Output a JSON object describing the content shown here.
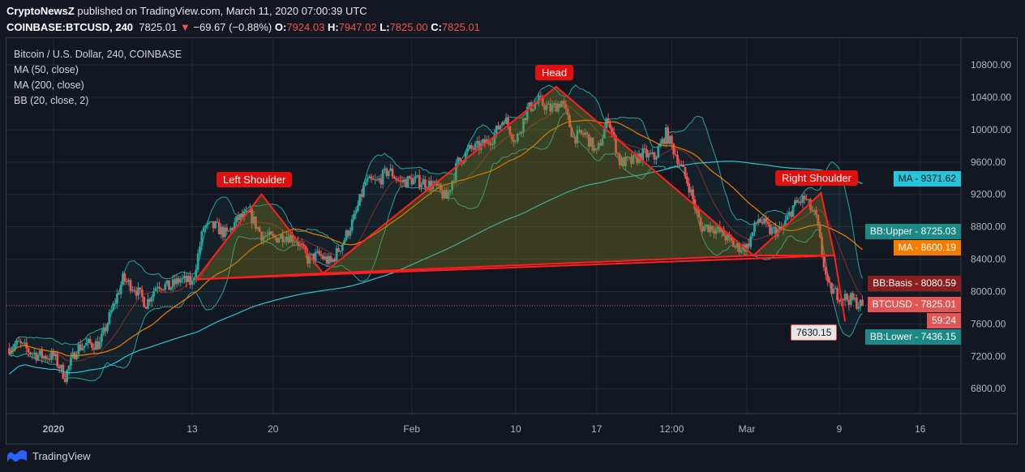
{
  "header": {
    "publisher": "CryptoNewsZ",
    "published_text": "published on TradingView.com, March 11, 2020 07:00:39 UTC",
    "symbol": "COINBASE:BTCUSD, 240",
    "last": "7825.01",
    "change": "−69.67 (−0.88%)",
    "open": "7924.03",
    "high": "7947.02",
    "low": "7825.00",
    "close": "7825.01",
    "o_label": "O:",
    "h_label": "H:",
    "l_label": "L:",
    "c_label": "C:"
  },
  "legend": {
    "title": "Bitcoin / U.S. Dollar, 240, COINBASE",
    "ma50": "MA (50, close)",
    "ma200": "MA (200, close)",
    "bb": "BB (20, close, 2)"
  },
  "price_labels": [
    {
      "name": "MA",
      "value": "9371.62",
      "color": "#26c6da",
      "text_color": "#131722"
    },
    {
      "name": "BB:Upper",
      "value": "8725.03",
      "color": "#1b8a86",
      "text_color": "#ffffff"
    },
    {
      "name": "MA",
      "value": "8600.19",
      "color": "#f57c00",
      "text_color": "#ffffff"
    },
    {
      "name": "BB:Basis",
      "value": "8080.59",
      "color": "#8b1e1e",
      "text_color": "#ffffff"
    },
    {
      "name": "BTCUSD",
      "value": "7825.01",
      "color": "#e35454",
      "text_color": "#ffffff"
    },
    {
      "name": "",
      "value": "59:24",
      "color": "#e35454",
      "text_color": "#ffffff"
    },
    {
      "name": "BB:Lower",
      "value": "7436.15",
      "color": "#1b8a86",
      "text_color": "#ffffff"
    }
  ],
  "annotations": {
    "head": "Head",
    "left_shoulder": "Left Shoulder",
    "right_shoulder": "Right Shoulder",
    "price_callout": "7630.15"
  },
  "footer": {
    "brand": "TradingView"
  },
  "colors": {
    "up": "#26a69a",
    "down": "#ef5350",
    "pattern": "#ff1f1f",
    "ma50": "#f57c00",
    "ma200": "#26c6da",
    "bb": "#26a69a",
    "basis": "#e04040"
  },
  "chart_data": {
    "type": "candlestick",
    "interval": "240",
    "ylim": [
      6500,
      11000
    ],
    "y_ticks": [
      6800,
      7200,
      7600,
      8000,
      8400,
      8800,
      9200,
      9600,
      10000,
      10400,
      10800
    ],
    "x_ticks": [
      {
        "label": "2020",
        "date": "2020-01-01"
      },
      {
        "label": "13",
        "date": "2020-01-13"
      },
      {
        "label": "20",
        "date": "2020-01-20"
      },
      {
        "label": "Feb",
        "date": "2020-02-01"
      },
      {
        "label": "10",
        "date": "2020-02-10"
      },
      {
        "label": "17",
        "date": "2020-02-17"
      },
      {
        "label": "12:00",
        "date": "2020-02-23T12:00"
      },
      {
        "label": "Mar",
        "date": "2020-03-01"
      },
      {
        "label": "9",
        "date": "2020-03-09"
      },
      {
        "label": "16",
        "date": "2020-03-16"
      }
    ],
    "grid": true,
    "approx_daily_close": [
      [
        "2019-12-28",
        7300
      ],
      [
        "2019-12-29",
        7350
      ],
      [
        "2019-12-30",
        7250
      ],
      [
        "2019-12-31",
        7200
      ],
      [
        "2020-01-01",
        7200
      ],
      [
        "2020-01-02",
        6950
      ],
      [
        "2020-01-03",
        7300
      ],
      [
        "2020-01-04",
        7350
      ],
      [
        "2020-01-05",
        7350
      ],
      [
        "2020-01-06",
        7750
      ],
      [
        "2020-01-07",
        8150
      ],
      [
        "2020-01-08",
        8050
      ],
      [
        "2020-01-09",
        7850
      ],
      [
        "2020-01-10",
        8100
      ],
      [
        "2020-01-11",
        8050
      ],
      [
        "2020-01-12",
        8150
      ],
      [
        "2020-01-13",
        8100
      ],
      [
        "2020-01-14",
        8800
      ],
      [
        "2020-01-15",
        8800
      ],
      [
        "2020-01-16",
        8700
      ],
      [
        "2020-01-17",
        8900
      ],
      [
        "2020-01-18",
        8950
      ],
      [
        "2020-01-19",
        8700
      ],
      [
        "2020-01-20",
        8650
      ],
      [
        "2020-01-21",
        8700
      ],
      [
        "2020-01-22",
        8650
      ],
      [
        "2020-01-23",
        8400
      ],
      [
        "2020-01-24",
        8450
      ],
      [
        "2020-01-25",
        8350
      ],
      [
        "2020-01-26",
        8600
      ],
      [
        "2020-01-27",
        8900
      ],
      [
        "2020-01-28",
        9350
      ],
      [
        "2020-01-29",
        9350
      ],
      [
        "2020-01-30",
        9500
      ],
      [
        "2020-01-31",
        9350
      ],
      [
        "2020-02-01",
        9380
      ],
      [
        "2020-02-02",
        9350
      ],
      [
        "2020-02-03",
        9300
      ],
      [
        "2020-02-04",
        9150
      ],
      [
        "2020-02-05",
        9600
      ],
      [
        "2020-02-06",
        9750
      ],
      [
        "2020-02-07",
        9800
      ],
      [
        "2020-02-08",
        9900
      ],
      [
        "2020-02-09",
        10150
      ],
      [
        "2020-02-10",
        9850
      ],
      [
        "2020-02-11",
        10250
      ],
      [
        "2020-02-12",
        10350
      ],
      [
        "2020-02-13",
        10250
      ],
      [
        "2020-02-14",
        10350
      ],
      [
        "2020-02-15",
        9900
      ],
      [
        "2020-02-16",
        9950
      ],
      [
        "2020-02-17",
        9700
      ],
      [
        "2020-02-18",
        10150
      ],
      [
        "2020-02-19",
        9600
      ],
      [
        "2020-02-20",
        9600
      ],
      [
        "2020-02-21",
        9700
      ],
      [
        "2020-02-22",
        9650
      ],
      [
        "2020-02-23",
        9950
      ],
      [
        "2020-02-24",
        9650
      ],
      [
        "2020-02-25",
        9300
      ],
      [
        "2020-02-26",
        8800
      ],
      [
        "2020-02-27",
        8800
      ],
      [
        "2020-02-28",
        8700
      ],
      [
        "2020-02-29",
        8550
      ],
      [
        "2020-03-01",
        8550
      ],
      [
        "2020-03-02",
        8900
      ],
      [
        "2020-03-03",
        8750
      ],
      [
        "2020-03-04",
        8750
      ],
      [
        "2020-03-05",
        9050
      ],
      [
        "2020-03-06",
        9150
      ],
      [
        "2020-03-07",
        8900
      ],
      [
        "2020-03-08",
        8050
      ],
      [
        "2020-03-09",
        7950
      ],
      [
        "2020-03-10",
        7900
      ],
      [
        "2020-03-11",
        7825
      ]
    ],
    "pattern": {
      "left_shoulder": [
        [
          "2020-01-13T08:00",
          8150
        ],
        [
          "2020-01-19T00:00",
          9200
        ],
        [
          "2020-01-24T08:00",
          8225
        ]
      ],
      "head": [
        [
          "2020-01-24T08:00",
          8225
        ],
        [
          "2020-02-13T12:00",
          10530
        ],
        [
          "2020-03-01T14:00",
          8445
        ]
      ],
      "right_shoulder": [
        [
          "2020-03-01T14:00",
          8445
        ],
        [
          "2020-03-07T10:00",
          9217
        ],
        [
          "2020-03-08T14:00",
          8445
        ]
      ],
      "neckline": [
        [
          "2020-01-13T08:00",
          8150
        ],
        [
          "2020-03-08T14:00",
          8445
        ]
      ],
      "breakdown": [
        [
          "2020-03-08T14:00",
          8445
        ],
        [
          "2020-03-09T12:00",
          7630.15
        ]
      ]
    }
  }
}
